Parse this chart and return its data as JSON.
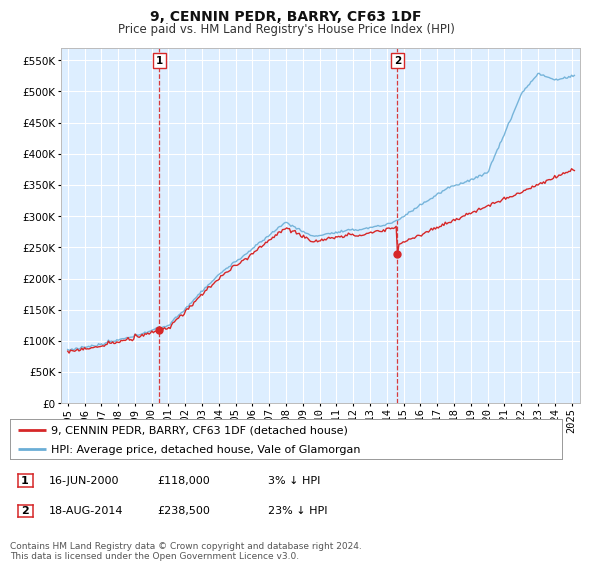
{
  "title": "9, CENNIN PEDR, BARRY, CF63 1DF",
  "subtitle": "Price paid vs. HM Land Registry's House Price Index (HPI)",
  "ylim": [
    0,
    570000
  ],
  "yticks": [
    0,
    50000,
    100000,
    150000,
    200000,
    250000,
    300000,
    350000,
    400000,
    450000,
    500000,
    550000
  ],
  "ytick_labels": [
    "£0",
    "£50K",
    "£100K",
    "£150K",
    "£200K",
    "£250K",
    "£300K",
    "£350K",
    "£400K",
    "£450K",
    "£500K",
    "£550K"
  ],
  "hpi_color": "#6baed6",
  "price_color": "#d62728",
  "plot_bg_color": "#ddeeff",
  "bg_color": "#ffffff",
  "grid_color": "#ffffff",
  "marker1_date": 2000.46,
  "marker1_value": 118000,
  "marker2_date": 2014.63,
  "marker2_value": 238500,
  "legend_label1": "9, CENNIN PEDR, BARRY, CF63 1DF (detached house)",
  "legend_label2": "HPI: Average price, detached house, Vale of Glamorgan",
  "annotation1_date": "16-JUN-2000",
  "annotation1_price": "£118,000",
  "annotation1_hpi": "3% ↓ HPI",
  "annotation2_date": "18-AUG-2014",
  "annotation2_price": "£238,500",
  "annotation2_hpi": "23% ↓ HPI",
  "footer": "Contains HM Land Registry data © Crown copyright and database right 2024.\nThis data is licensed under the Open Government Licence v3.0.",
  "title_fontsize": 10,
  "subtitle_fontsize": 8.5,
  "tick_fontsize": 7.5,
  "legend_fontsize": 8,
  "ann_fontsize": 8
}
